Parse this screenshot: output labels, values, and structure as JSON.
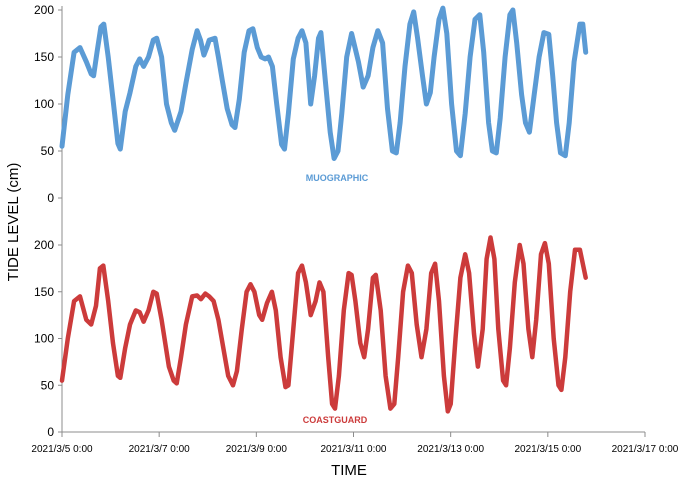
{
  "chart_data": {
    "type": "line",
    "xlabel": "TIME",
    "ylabel": "TIDE LEVEL (cm)",
    "x_range": [
      "2021/3/5 0:00",
      "2021/3/17 0:00"
    ],
    "x_ticks": [
      "2021/3/5 0:00",
      "2021/3/7 0:00",
      "2021/3/9 0:00",
      "2021/3/11 0:00",
      "2021/3/13 0:00",
      "2021/3/15 0:00",
      "2021/3/17 0:00"
    ],
    "x_units": "days",
    "panels": [
      {
        "series": "MUOGRAPHIC",
        "ylim": [
          0,
          200
        ],
        "yticks": [
          "0",
          "50",
          "100",
          "150",
          "200"
        ]
      },
      {
        "series": "COASTGUARD",
        "ylim": [
          0,
          200
        ],
        "yticks": [
          "0",
          "50",
          "100",
          "150",
          "200"
        ]
      }
    ],
    "series": [
      {
        "name": "MUOGRAPHIC",
        "color": "#5b9bd5",
        "points": [
          [
            0.0,
            55
          ],
          [
            0.12,
            110
          ],
          [
            0.25,
            155
          ],
          [
            0.37,
            160
          ],
          [
            0.5,
            145
          ],
          [
            0.6,
            132
          ],
          [
            0.65,
            130
          ],
          [
            0.72,
            155
          ],
          [
            0.8,
            182
          ],
          [
            0.86,
            185
          ],
          [
            0.95,
            150
          ],
          [
            1.05,
            105
          ],
          [
            1.15,
            58
          ],
          [
            1.2,
            52
          ],
          [
            1.3,
            92
          ],
          [
            1.4,
            112
          ],
          [
            1.52,
            140
          ],
          [
            1.6,
            148
          ],
          [
            1.68,
            140
          ],
          [
            1.78,
            150
          ],
          [
            1.88,
            168
          ],
          [
            1.95,
            170
          ],
          [
            2.05,
            150
          ],
          [
            2.15,
            100
          ],
          [
            2.25,
            80
          ],
          [
            2.32,
            72
          ],
          [
            2.45,
            92
          ],
          [
            2.55,
            122
          ],
          [
            2.68,
            158
          ],
          [
            2.78,
            178
          ],
          [
            2.85,
            168
          ],
          [
            2.92,
            152
          ],
          [
            2.98,
            160
          ],
          [
            3.03,
            168
          ],
          [
            3.15,
            170
          ],
          [
            3.22,
            150
          ],
          [
            3.3,
            125
          ],
          [
            3.4,
            95
          ],
          [
            3.5,
            78
          ],
          [
            3.56,
            75
          ],
          [
            3.65,
            105
          ],
          [
            3.75,
            155
          ],
          [
            3.85,
            178
          ],
          [
            3.93,
            180
          ],
          [
            4.02,
            160
          ],
          [
            4.1,
            150
          ],
          [
            4.18,
            148
          ],
          [
            4.25,
            150
          ],
          [
            4.33,
            140
          ],
          [
            4.42,
            100
          ],
          [
            4.52,
            57
          ],
          [
            4.58,
            52
          ],
          [
            4.66,
            90
          ],
          [
            4.76,
            148
          ],
          [
            4.86,
            170
          ],
          [
            4.94,
            178
          ],
          [
            5.02,
            165
          ],
          [
            5.12,
            100
          ],
          [
            5.2,
            130
          ],
          [
            5.28,
            170
          ],
          [
            5.33,
            176
          ],
          [
            5.42,
            125
          ],
          [
            5.52,
            70
          ],
          [
            5.6,
            42
          ],
          [
            5.68,
            50
          ],
          [
            5.76,
            90
          ],
          [
            5.86,
            150
          ],
          [
            5.96,
            175
          ],
          [
            6.1,
            145
          ],
          [
            6.2,
            118
          ],
          [
            6.3,
            130
          ],
          [
            6.4,
            160
          ],
          [
            6.5,
            178
          ],
          [
            6.6,
            165
          ],
          [
            6.7,
            95
          ],
          [
            6.8,
            50
          ],
          [
            6.88,
            48
          ],
          [
            6.96,
            80
          ],
          [
            7.06,
            140
          ],
          [
            7.16,
            185
          ],
          [
            7.24,
            198
          ],
          [
            7.32,
            170
          ],
          [
            7.42,
            130
          ],
          [
            7.5,
            100
          ],
          [
            7.58,
            112
          ],
          [
            7.66,
            150
          ],
          [
            7.76,
            190
          ],
          [
            7.84,
            202
          ],
          [
            7.92,
            175
          ],
          [
            8.02,
            100
          ],
          [
            8.12,
            50
          ],
          [
            8.2,
            45
          ],
          [
            8.3,
            90
          ],
          [
            8.4,
            150
          ],
          [
            8.5,
            190
          ],
          [
            8.6,
            195
          ],
          [
            8.68,
            155
          ],
          [
            8.78,
            80
          ],
          [
            8.86,
            50
          ],
          [
            8.94,
            48
          ],
          [
            9.02,
            85
          ],
          [
            9.12,
            150
          ],
          [
            9.22,
            195
          ],
          [
            9.28,
            200
          ],
          [
            9.36,
            165
          ],
          [
            9.46,
            110
          ],
          [
            9.54,
            80
          ],
          [
            9.62,
            70
          ],
          [
            9.72,
            110
          ],
          [
            9.82,
            150
          ],
          [
            9.92,
            176
          ],
          [
            10.02,
            174
          ],
          [
            10.1,
            130
          ],
          [
            10.18,
            80
          ],
          [
            10.26,
            48
          ],
          [
            10.36,
            45
          ],
          [
            10.44,
            80
          ],
          [
            10.54,
            145
          ],
          [
            10.66,
            185
          ],
          [
            10.72,
            185
          ],
          [
            10.78,
            155
          ]
        ]
      },
      {
        "name": "COASTGUARD",
        "color": "#cc3b3b",
        "points": [
          [
            0.0,
            55
          ],
          [
            0.12,
            100
          ],
          [
            0.25,
            140
          ],
          [
            0.37,
            145
          ],
          [
            0.5,
            120
          ],
          [
            0.6,
            115
          ],
          [
            0.7,
            135
          ],
          [
            0.78,
            175
          ],
          [
            0.85,
            178
          ],
          [
            0.95,
            140
          ],
          [
            1.05,
            95
          ],
          [
            1.15,
            60
          ],
          [
            1.2,
            58
          ],
          [
            1.3,
            90
          ],
          [
            1.4,
            115
          ],
          [
            1.52,
            130
          ],
          [
            1.6,
            128
          ],
          [
            1.68,
            118
          ],
          [
            1.78,
            130
          ],
          [
            1.88,
            150
          ],
          [
            1.95,
            148
          ],
          [
            2.05,
            120
          ],
          [
            2.2,
            70
          ],
          [
            2.3,
            55
          ],
          [
            2.36,
            52
          ],
          [
            2.45,
            80
          ],
          [
            2.55,
            115
          ],
          [
            2.68,
            145
          ],
          [
            2.78,
            146
          ],
          [
            2.86,
            142
          ],
          [
            2.95,
            148
          ],
          [
            3.03,
            145
          ],
          [
            3.12,
            140
          ],
          [
            3.22,
            120
          ],
          [
            3.32,
            90
          ],
          [
            3.42,
            60
          ],
          [
            3.52,
            50
          ],
          [
            3.6,
            65
          ],
          [
            3.7,
            110
          ],
          [
            3.8,
            150
          ],
          [
            3.88,
            158
          ],
          [
            3.96,
            150
          ],
          [
            4.06,
            125
          ],
          [
            4.12,
            120
          ],
          [
            4.22,
            138
          ],
          [
            4.32,
            150
          ],
          [
            4.4,
            130
          ],
          [
            4.5,
            80
          ],
          [
            4.6,
            48
          ],
          [
            4.66,
            50
          ],
          [
            4.76,
            110
          ],
          [
            4.86,
            170
          ],
          [
            4.94,
            178
          ],
          [
            5.02,
            160
          ],
          [
            5.12,
            125
          ],
          [
            5.22,
            140
          ],
          [
            5.3,
            160
          ],
          [
            5.38,
            150
          ],
          [
            5.48,
            80
          ],
          [
            5.56,
            30
          ],
          [
            5.62,
            25
          ],
          [
            5.7,
            60
          ],
          [
            5.8,
            130
          ],
          [
            5.9,
            170
          ],
          [
            5.96,
            168
          ],
          [
            6.04,
            140
          ],
          [
            6.14,
            95
          ],
          [
            6.22,
            80
          ],
          [
            6.3,
            110
          ],
          [
            6.4,
            165
          ],
          [
            6.46,
            168
          ],
          [
            6.56,
            130
          ],
          [
            6.66,
            60
          ],
          [
            6.76,
            25
          ],
          [
            6.84,
            30
          ],
          [
            6.92,
            80
          ],
          [
            7.02,
            150
          ],
          [
            7.12,
            178
          ],
          [
            7.2,
            170
          ],
          [
            7.3,
            115
          ],
          [
            7.4,
            80
          ],
          [
            7.5,
            110
          ],
          [
            7.6,
            170
          ],
          [
            7.68,
            180
          ],
          [
            7.76,
            140
          ],
          [
            7.86,
            60
          ],
          [
            7.94,
            22
          ],
          [
            8.0,
            30
          ],
          [
            8.1,
            100
          ],
          [
            8.2,
            165
          ],
          [
            8.3,
            190
          ],
          [
            8.38,
            170
          ],
          [
            8.48,
            105
          ],
          [
            8.56,
            70
          ],
          [
            8.66,
            110
          ],
          [
            8.74,
            185
          ],
          [
            8.82,
            208
          ],
          [
            8.9,
            185
          ],
          [
            8.98,
            110
          ],
          [
            9.08,
            55
          ],
          [
            9.14,
            50
          ],
          [
            9.22,
            90
          ],
          [
            9.32,
            160
          ],
          [
            9.42,
            200
          ],
          [
            9.5,
            180
          ],
          [
            9.6,
            110
          ],
          [
            9.68,
            80
          ],
          [
            9.76,
            120
          ],
          [
            9.86,
            190
          ],
          [
            9.94,
            202
          ],
          [
            10.02,
            180
          ],
          [
            10.12,
            100
          ],
          [
            10.22,
            50
          ],
          [
            10.28,
            45
          ],
          [
            10.36,
            80
          ],
          [
            10.46,
            150
          ],
          [
            10.56,
            195
          ],
          [
            10.66,
            195
          ],
          [
            10.72,
            180
          ],
          [
            10.78,
            165
          ]
        ]
      }
    ],
    "legend": "inline labels below each series",
    "grid": false
  }
}
